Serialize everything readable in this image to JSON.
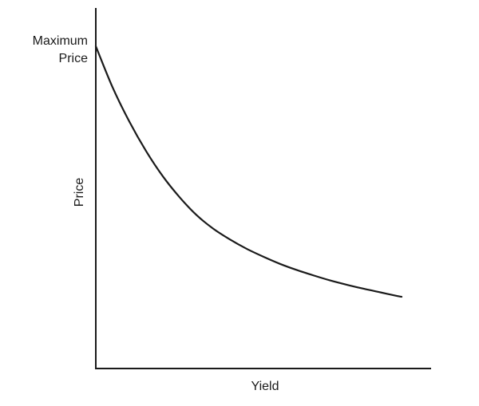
{
  "chart_data": {
    "type": "line",
    "title": "",
    "xlabel": "Yield",
    "ylabel": "Price",
    "annotations": [
      {
        "text_lines": [
          "Maximum",
          "Price"
        ],
        "refers_to": "y-intercept of curve"
      }
    ],
    "xlim": [
      0,
      1
    ],
    "ylim": [
      0,
      1
    ],
    "grid": false,
    "legend": "none",
    "series": [
      {
        "x": [
          0,
          0.05,
          0.1,
          0.15,
          0.2,
          0.25,
          0.3,
          0.35,
          0.4,
          0.45,
          0.5,
          0.55,
          0.6,
          0.65,
          0.7,
          0.75,
          0.8,
          0.85,
          0.9,
          0.912
        ],
        "y": [
          0.894,
          0.78,
          0.685,
          0.603,
          0.533,
          0.475,
          0.426,
          0.388,
          0.358,
          0.332,
          0.31,
          0.29,
          0.273,
          0.258,
          0.244,
          0.232,
          0.221,
          0.211,
          0.201,
          0.199
        ]
      }
    ],
    "colors": {
      "axis": "#1a1a1a",
      "curve": "#1a1a1a"
    }
  }
}
